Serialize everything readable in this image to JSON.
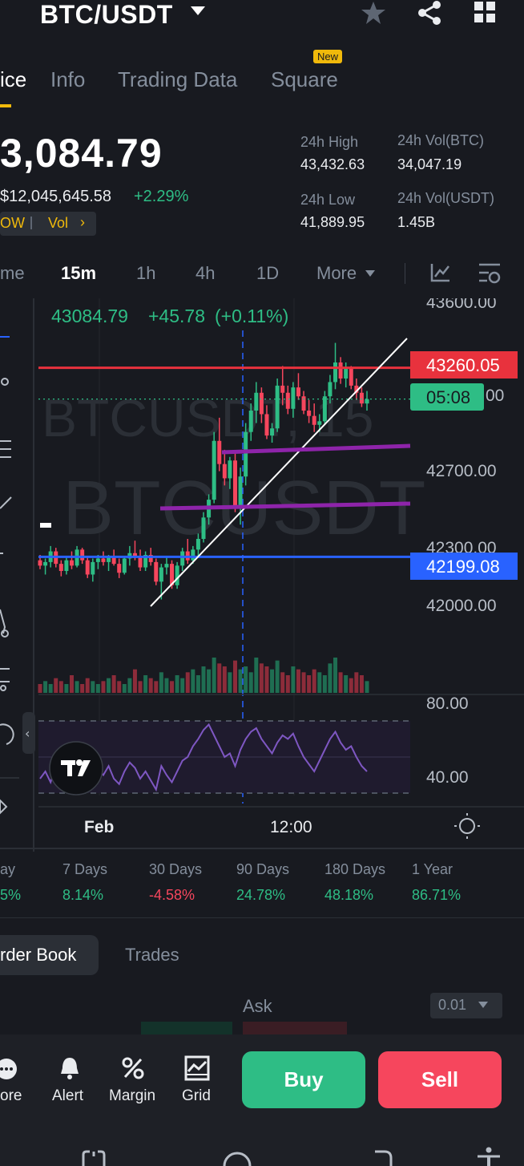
{
  "header": {
    "pair": "BTC/USDT",
    "icons": [
      "star-icon",
      "share-icon",
      "grid-menu-icon"
    ]
  },
  "tabs": [
    {
      "label": "ice",
      "active": true
    },
    {
      "label": "Info"
    },
    {
      "label": "Trading Data"
    },
    {
      "label": "Square",
      "badge": "New"
    }
  ],
  "price": {
    "last": "3,084.79",
    "fiat": "$12,045,645.58",
    "change": "+2.29%",
    "tags": [
      "OW",
      "Vol"
    ]
  },
  "stats": {
    "high_label": "24h High",
    "high_value": "43,432.63",
    "vol_btc_label": "24h Vol(BTC)",
    "vol_btc_value": "34,047.19",
    "low_label": "24h Low",
    "low_value": "41,889.95",
    "vol_usdt_label": "24h Vol(USDT)",
    "vol_usdt_value": "1.45B"
  },
  "intervals": [
    "me",
    "15m",
    "1h",
    "4h",
    "1D",
    "More"
  ],
  "chart": {
    "info_price": "43084.79",
    "info_change": "+45.78",
    "info_pct": "(+0.11%)",
    "watermark_top": "BTCUSDT, 15",
    "watermark_main": "BTCUSDT",
    "red_line_label": "43260.05",
    "countdown": "05:08",
    "last_partial": "00",
    "blue_line_label": "42199.08",
    "y_ticks": [
      "43600.00",
      "42700.00",
      "42300.00",
      "42000.00"
    ],
    "rsi_ticks": [
      "80.00",
      "40.00"
    ],
    "x_ticks": [
      "Feb",
      "12:00"
    ],
    "colors": {
      "up": "#2ebd85",
      "down": "#f6465d",
      "red_line": "#e8323d",
      "blue_line": "#2962ff",
      "purple": "#8e24aa",
      "rsi": "#7e57c2"
    }
  },
  "chart_data": {
    "type": "candlestick",
    "symbol": "BTCUSDT",
    "interval": "15m",
    "ylim": [
      41850,
      43650
    ],
    "candles": [
      [
        42180,
        42210,
        42130,
        42150
      ],
      [
        42150,
        42190,
        42100,
        42170
      ],
      [
        42170,
        42260,
        42140,
        42230
      ],
      [
        42230,
        42250,
        42140,
        42160
      ],
      [
        42160,
        42180,
        42090,
        42120
      ],
      [
        42120,
        42200,
        42100,
        42180
      ],
      [
        42180,
        42230,
        42130,
        42150
      ],
      [
        42150,
        42260,
        42140,
        42240
      ],
      [
        42240,
        42250,
        42160,
        42180
      ],
      [
        42180,
        42200,
        42080,
        42100
      ],
      [
        42100,
        42190,
        42060,
        42170
      ],
      [
        42170,
        42210,
        42130,
        42190
      ],
      [
        42190,
        42230,
        42150,
        42170
      ],
      [
        42170,
        42210,
        42120,
        42200
      ],
      [
        42200,
        42240,
        42150,
        42160
      ],
      [
        42160,
        42190,
        42080,
        42110
      ],
      [
        42110,
        42200,
        42100,
        42190
      ],
      [
        42190,
        42260,
        42150,
        42220
      ],
      [
        42220,
        42290,
        42180,
        42200
      ],
      [
        42200,
        42240,
        42120,
        42140
      ],
      [
        42140,
        42230,
        42120,
        42210
      ],
      [
        42210,
        42250,
        42150,
        42170
      ],
      [
        42170,
        42190,
        42040,
        42060
      ],
      [
        42060,
        42160,
        41960,
        42140
      ],
      [
        42140,
        42200,
        42100,
        42160
      ],
      [
        42160,
        42180,
        42020,
        42040
      ],
      [
        42040,
        42170,
        42020,
        42150
      ],
      [
        42150,
        42250,
        42120,
        42230
      ],
      [
        42230,
        42300,
        42160,
        42180
      ],
      [
        42180,
        42260,
        42160,
        42240
      ],
      [
        42240,
        42330,
        42200,
        42300
      ],
      [
        42300,
        42450,
        42280,
        42420
      ],
      [
        42420,
        42550,
        42380,
        42520
      ],
      [
        42520,
        42900,
        42500,
        42850
      ],
      [
        42850,
        42980,
        42680,
        42720
      ],
      [
        42720,
        42800,
        42600,
        42640
      ],
      [
        42640,
        42760,
        42580,
        42740
      ],
      [
        42740,
        42780,
        42450,
        42480
      ],
      [
        42480,
        42700,
        42380,
        42650
      ],
      [
        42650,
        42950,
        42600,
        42900
      ],
      [
        42900,
        43060,
        42850,
        43020
      ],
      [
        43020,
        43180,
        42950,
        43120
      ],
      [
        43120,
        43150,
        42950,
        43000
      ],
      [
        43000,
        43050,
        42860,
        42880
      ],
      [
        42880,
        42950,
        42840,
        42920
      ],
      [
        42920,
        43200,
        42900,
        43160
      ],
      [
        43160,
        43270,
        43050,
        43120
      ],
      [
        43120,
        43160,
        43000,
        43030
      ],
      [
        43030,
        43180,
        42980,
        43150
      ],
      [
        43150,
        43230,
        43080,
        43100
      ],
      [
        43100,
        43130,
        43000,
        43020
      ],
      [
        43020,
        43080,
        42950,
        42990
      ],
      [
        42990,
        43060,
        42900,
        42940
      ],
      [
        42940,
        43000,
        42900,
        42960
      ],
      [
        42960,
        43130,
        42940,
        43100
      ],
      [
        43100,
        43220,
        43060,
        43180
      ],
      [
        43180,
        43400,
        43140,
        43290
      ],
      [
        43290,
        43320,
        43170,
        43200
      ],
      [
        43200,
        43290,
        43150,
        43260
      ],
      [
        43260,
        43270,
        43140,
        43160
      ],
      [
        43160,
        43200,
        43080,
        43120
      ],
      [
        43120,
        43150,
        43040,
        43060
      ],
      [
        43060,
        43130,
        43020,
        43084.79
      ]
    ],
    "volume": [
      3,
      4,
      3,
      5,
      4,
      3,
      6,
      4,
      3,
      5,
      4,
      3,
      4,
      5,
      6,
      4,
      3,
      5,
      8,
      4,
      6,
      5,
      4,
      7,
      5,
      4,
      6,
      5,
      7,
      8,
      6,
      9,
      8,
      12,
      10,
      9,
      7,
      11,
      8,
      9,
      7,
      12,
      10,
      9,
      8,
      11,
      7,
      6,
      9,
      8,
      7,
      6,
      8,
      7,
      6,
      10,
      12,
      7,
      6,
      5,
      7,
      6,
      4
    ],
    "rsi": [
      48,
      52,
      46,
      55,
      50,
      44,
      56,
      52,
      47,
      51,
      49,
      53,
      50,
      55,
      48,
      45,
      52,
      57,
      54,
      48,
      52,
      47,
      42,
      55,
      50,
      46,
      52,
      58,
      60,
      66,
      70,
      75,
      78,
      72,
      66,
      60,
      62,
      55,
      64,
      70,
      74,
      76,
      70,
      66,
      62,
      68,
      72,
      70,
      73,
      66,
      60,
      56,
      52,
      58,
      64,
      70,
      74,
      68,
      64,
      66,
      60,
      55,
      52
    ],
    "lines": {
      "resistance": 43260.05,
      "support": 42199.08
    },
    "y_ticks": [
      43600,
      42700,
      42300,
      42000
    ],
    "rsi_ticks": [
      80,
      40
    ]
  },
  "performance": [
    {
      "label": "ay",
      "value": "5%",
      "color": "#2ebd85"
    },
    {
      "label": "7 Days",
      "value": "8.14%",
      "color": "#2ebd85"
    },
    {
      "label": "30 Days",
      "value": "-4.58%",
      "color": "#f6465d"
    },
    {
      "label": "90 Days",
      "value": "24.78%",
      "color": "#2ebd85"
    },
    {
      "label": "180 Days",
      "value": "48.18%",
      "color": "#2ebd85"
    },
    {
      "label": "1 Year",
      "value": "86.71%",
      "color": "#2ebd85"
    }
  ],
  "orderbook": {
    "tab_orderbook": "rder Book",
    "tab_trades": "Trades",
    "ask_label": "Ask",
    "precision": "0.01"
  },
  "actions": {
    "more": "ore",
    "alert": "Alert",
    "margin": "Margin",
    "grid": "Grid",
    "buy": "Buy",
    "sell": "Sell"
  }
}
